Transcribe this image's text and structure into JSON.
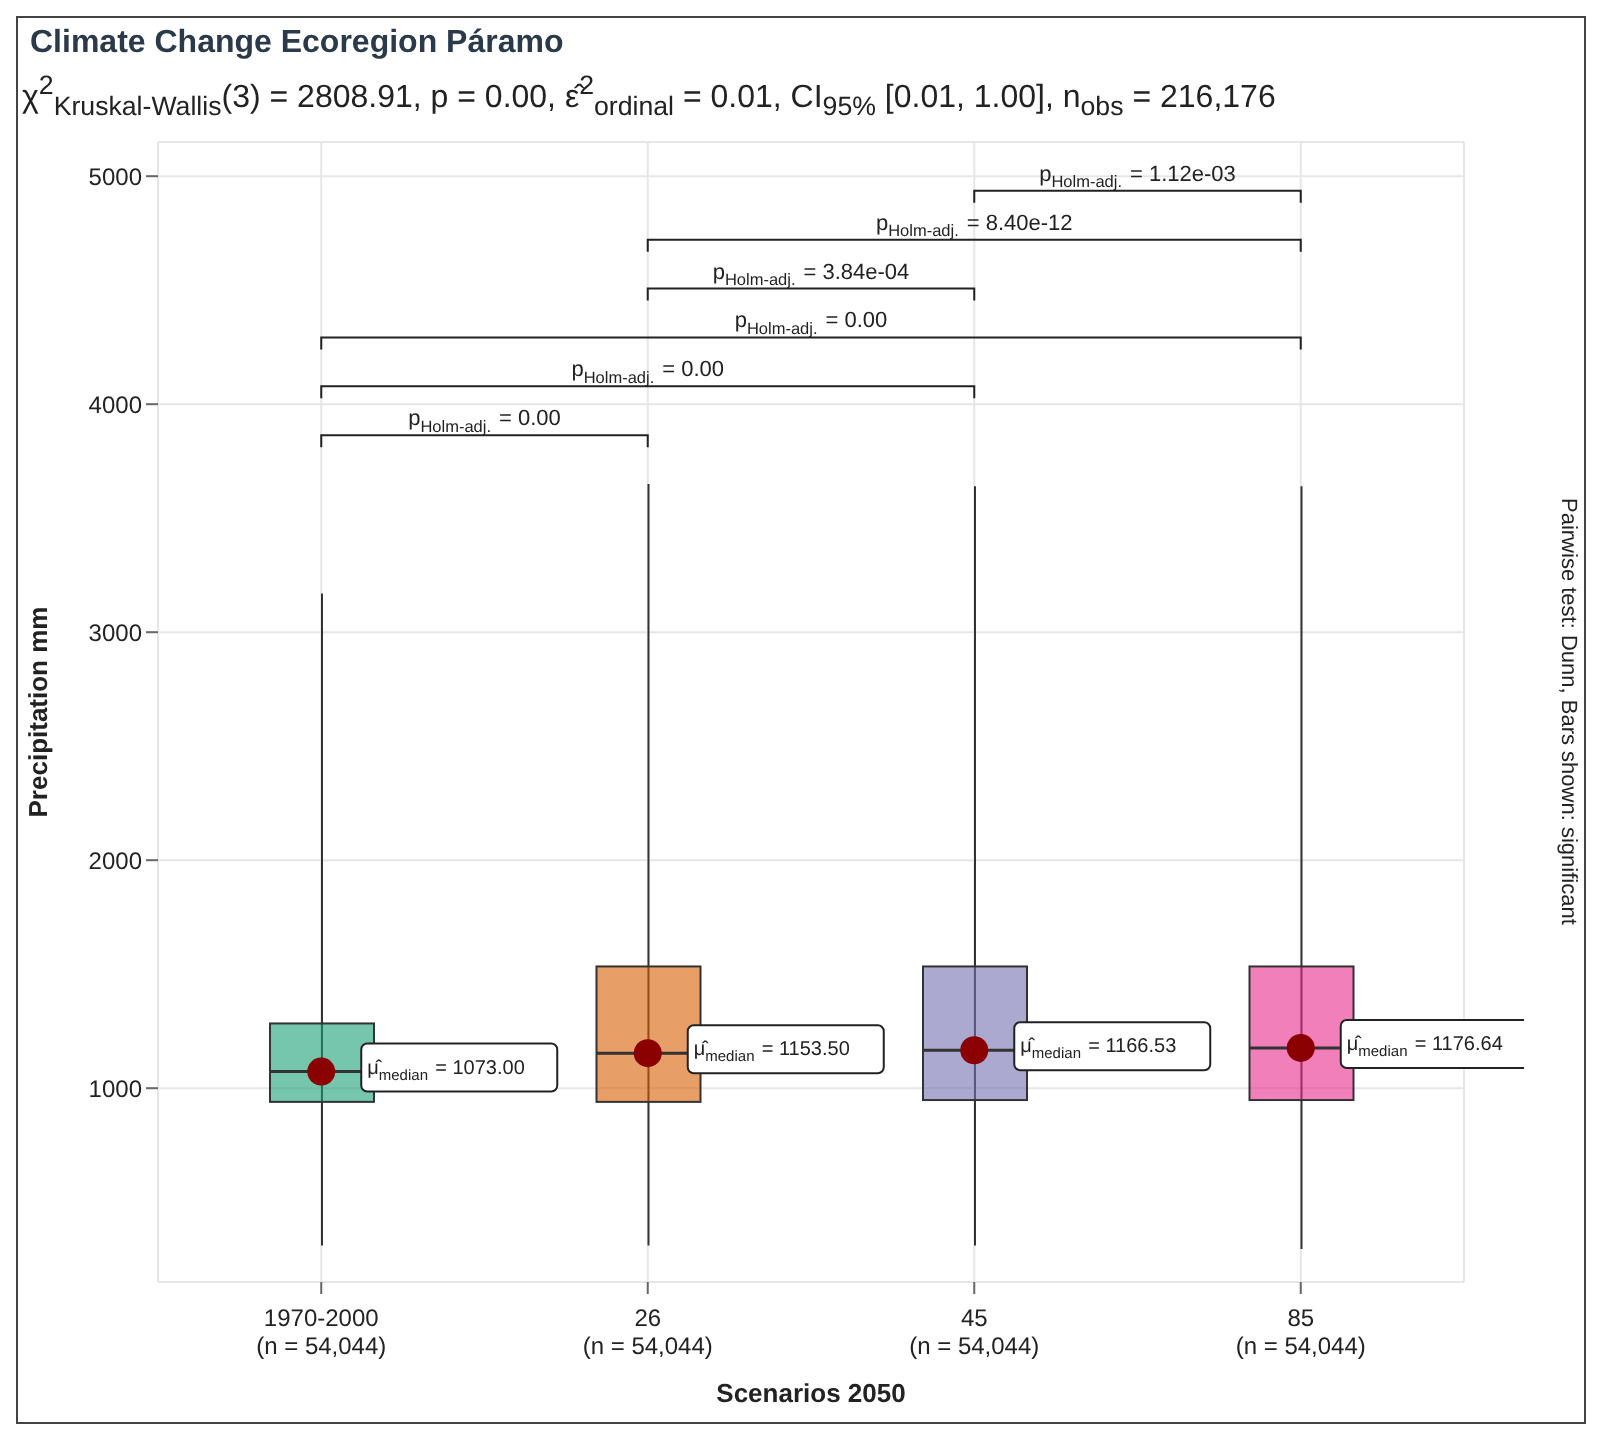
{
  "chart_data": {
    "type": "box",
    "title": "Climate Change Ecoregion Páramo",
    "subtitle": "χ$^{2}$$_{Kruskal-Wallis}$(3) = 2808.91, p = 0.00, ε̂$^{2}$$_{ordinal}$ = 0.01, CI$_{95%}$ [0.01, 1.00], n$_{obs}$ = 216,176",
    "xlabel": "Scenarios 2050",
    "ylabel": "Precipitation mm",
    "categories": [
      "1970-2000\n(n = 54,044)",
      "26\n(n = 54,044)",
      "45\n(n = 54,044)",
      "85\n(n = 54,044)"
    ],
    "colors": [
      "#1b9e77",
      "#d95f02",
      "#7570b3",
      "#e7298a"
    ],
    "boxes": [
      {
        "low": 310,
        "q1": 940,
        "median": 1073,
        "q3": 1284,
        "high": 3170
      },
      {
        "low": 310,
        "q1": 940,
        "median": 1153.5,
        "q3": 1534,
        "high": 3650
      },
      {
        "low": 310,
        "q1": 948,
        "median": 1166.53,
        "q3": 1534,
        "high": 3640
      },
      {
        "low": 295,
        "q1": 948,
        "median": 1176.64,
        "q3": 1534,
        "high": 3640
      }
    ],
    "series": [
      {
        "type": "scatter",
        "color": "#8b0000",
        "x": [
          "1970-2000\n(n = 54,044)",
          "26\n(n = 54,044)",
          "45\n(n = 54,044)",
          "85\n(n = 54,044)"
        ],
        "values": [
          1073,
          1153.5,
          1166.53,
          1176.64
        ]
      }
    ],
    "annotations": [
      {
        "text": "μ̂$_{median}$ = 1073.00",
        "x": "1970-2000\n(n = 54,044)",
        "y": 1073
      },
      {
        "text": "μ̂$_{median}$ = 1153.50",
        "x": "26\n(n = 54,044)",
        "y": 1153.5
      },
      {
        "text": "μ̂$_{median}$ = 1166.53",
        "x": "45\n(n = 54,044)",
        "y": 1166.53
      },
      {
        "text": "μ̂$_{median}$ = 1176.64",
        "x": "85\n(n = 54,044)",
        "y": 1176.64
      },
      "p$_{Holm-adj.}$ = 0.00",
      "p$_{Holm-adj.}$ = 0.00",
      "p$_{Holm-adj.}$ = 0.00",
      "p$_{Holm-adj.}$ = 3.84e-04",
      "p$_{Holm-adj.}$ = 8.40e-12",
      "p$_{Holm-adj.}$ = 1.12e-03",
      "Pairwise test: Dunn, Bars shown: significant"
    ],
    "ylim": [
      150,
      5150
    ],
    "yticks": [
      1000,
      2000,
      3000,
      4000,
      5000
    ],
    "grid": true
  }
}
